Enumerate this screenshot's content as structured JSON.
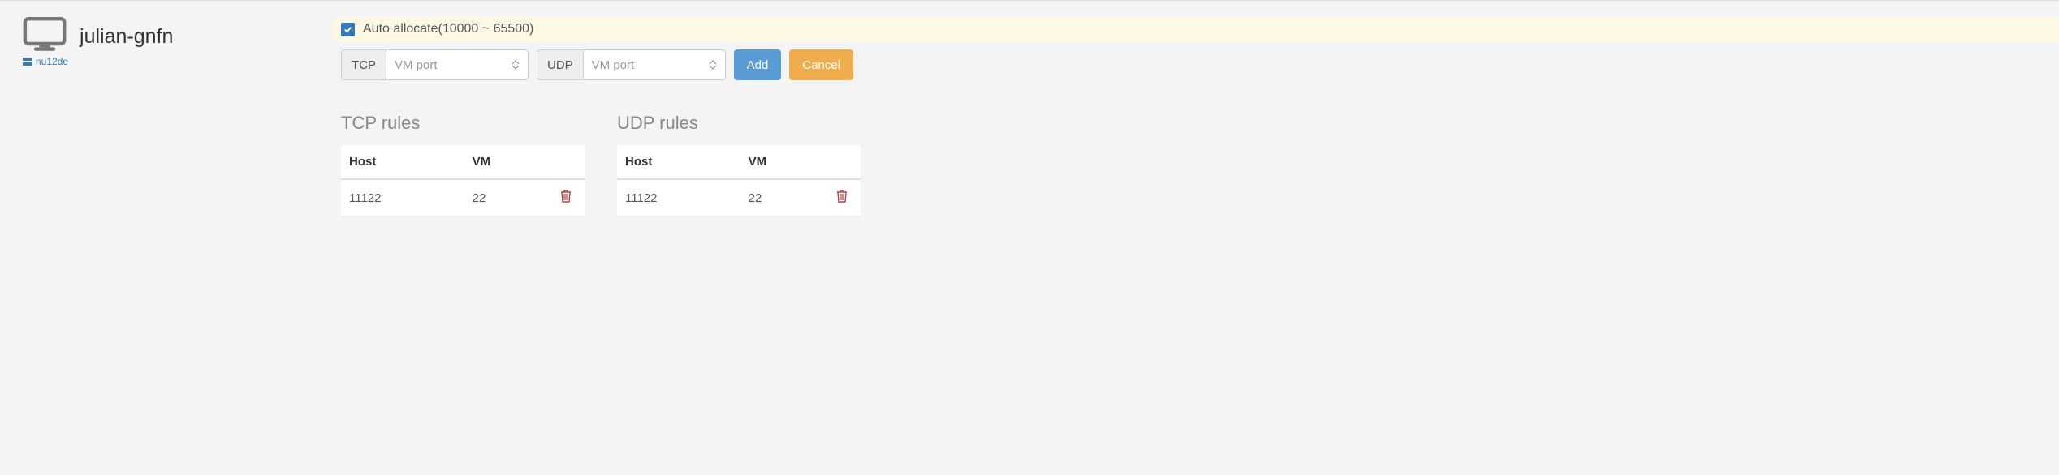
{
  "vm": {
    "name": "julian-gnfn",
    "host_label": "nu12de"
  },
  "auto_allocate": {
    "checked": true,
    "label": "Auto allocate(10000 ~ 65500)"
  },
  "port_inputs": {
    "tcp_addon": "TCP",
    "tcp_placeholder": "VM port",
    "udp_addon": "UDP",
    "udp_placeholder": "VM port"
  },
  "buttons": {
    "add": "Add",
    "cancel": "Cancel"
  },
  "rules": {
    "tcp_title": "TCP rules",
    "udp_title": "UDP rules",
    "col_host": "Host",
    "col_vm": "VM",
    "tcp_rows": [
      {
        "host": "11122",
        "vm": "22"
      }
    ],
    "udp_rows": [
      {
        "host": "11122",
        "vm": "22"
      }
    ]
  },
  "colors": {
    "page_bg": "#f4f4f4",
    "highlight_bg": "#fcf8e3",
    "checkbox_bg": "#337ab7",
    "btn_primary": "#5b9bd5",
    "btn_warning": "#f0ad4e",
    "trash": "#a94442",
    "link": "#337ab7"
  }
}
